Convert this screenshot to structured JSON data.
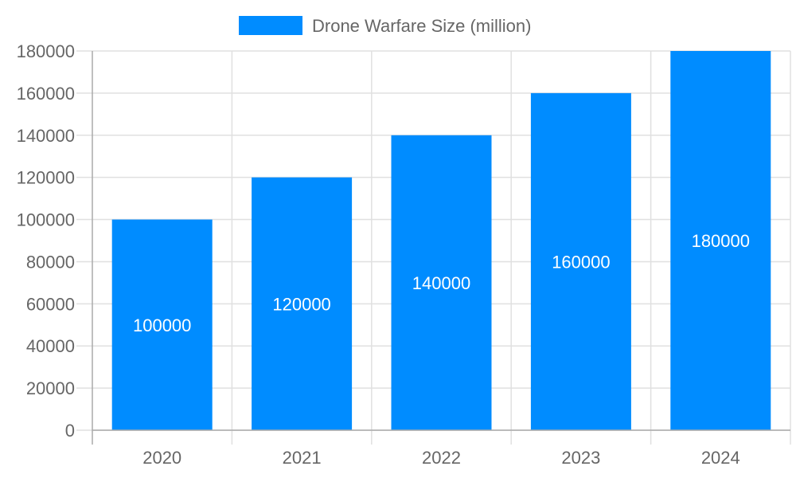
{
  "chart_data": {
    "type": "bar",
    "title": "",
    "xlabel": "",
    "ylabel": "",
    "categories": [
      "2020",
      "2021",
      "2022",
      "2023",
      "2024"
    ],
    "series": [
      {
        "name": "Drone Warfare Size (million)",
        "values": [
          100000,
          120000,
          140000,
          160000,
          180000
        ],
        "color": "#008cff"
      }
    ],
    "data_labels": [
      "100000",
      "120000",
      "140000",
      "160000",
      "180000"
    ],
    "ylim": [
      0,
      180000
    ],
    "yticks": [
      "0",
      "20000",
      "40000",
      "60000",
      "80000",
      "100000",
      "120000",
      "140000",
      "160000",
      "180000"
    ],
    "grid": true,
    "legend": "top-center"
  }
}
